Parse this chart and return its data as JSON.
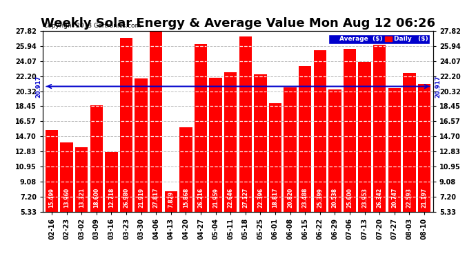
{
  "title": "Weekly Solar Energy & Average Value Mon Aug 12 06:26",
  "copyright": "Copyright 2013 Cartronics.com",
  "categories": [
    "02-16",
    "02-23",
    "03-02",
    "03-09",
    "03-16",
    "03-23",
    "03-30",
    "04-06",
    "04-13",
    "04-20",
    "04-27",
    "05-04",
    "05-11",
    "05-18",
    "05-25",
    "06-01",
    "06-08",
    "06-15",
    "06-22",
    "06-29",
    "07-06",
    "07-13",
    "07-20",
    "07-27",
    "08-03",
    "08-10"
  ],
  "values": [
    15.499,
    13.96,
    13.321,
    18.6,
    12.718,
    26.98,
    21.919,
    27.817,
    7.829,
    15.868,
    26.216,
    21.959,
    22.646,
    27.127,
    22.396,
    18.817,
    20.82,
    23.488,
    25.399,
    20.538,
    25.6,
    23.953,
    26.342,
    20.747,
    22.593,
    21.197
  ],
  "average": 20.917,
  "bar_color": "#FF0000",
  "avg_line_color": "#0000CC",
  "background_color": "#FFFFFF",
  "plot_bg_color": "#FFFFFF",
  "grid_color": "#BBBBBB",
  "ylim_min": 5.33,
  "ylim_max": 27.82,
  "yticks": [
    5.33,
    7.2,
    9.08,
    10.95,
    12.83,
    14.7,
    16.57,
    18.45,
    20.32,
    22.2,
    24.07,
    25.94,
    27.82
  ],
  "avg_label": "20.917",
  "title_fontsize": 13,
  "tick_fontsize": 7,
  "bar_label_fontsize": 5.5,
  "legend_avg_color": "#0000CC",
  "legend_daily_color": "#FF0000"
}
